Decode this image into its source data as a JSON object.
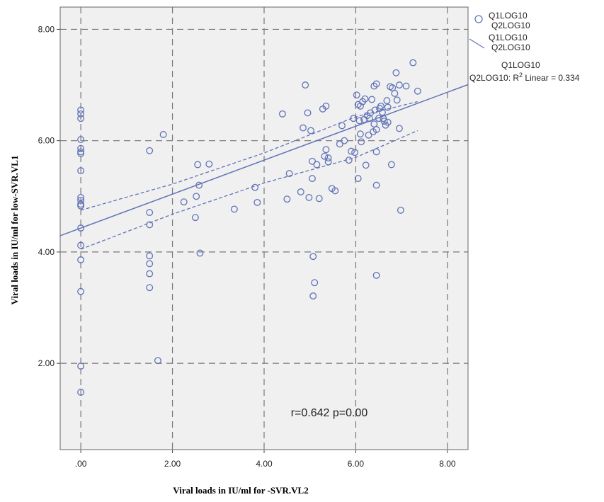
{
  "chart_data": {
    "type": "scatter",
    "title": "",
    "xlabel": "Viral loads in IU/ml for -SVR.VL2",
    "ylabel": "Viral loads in IU/ml for low-SVR.VL1",
    "xlim": [
      -0.45,
      8.45
    ],
    "ylim": [
      0.45,
      8.4
    ],
    "xticks": [
      0,
      2,
      4,
      6,
      8
    ],
    "xtick_labels": [
      ".00",
      "2.00",
      "4.00",
      "6.00",
      "8.00"
    ],
    "yticks": [
      2,
      4,
      6,
      8
    ],
    "ytick_labels": [
      "2.00",
      "4.00",
      "6.00",
      "8.00"
    ],
    "grid": true,
    "colors": {
      "series": "#6173b8",
      "plot_bg": "#f0f0f0",
      "grid": "#777777"
    },
    "legend": {
      "position": "top-right",
      "marker_line1": "Q1LOG10",
      "marker_line2": "Q2LOG10",
      "fit_line1": "Q1LOG10",
      "fit_line2": "Q2LOG10",
      "r2_line1": "Q1LOG10",
      "r2_prefix": "Q2LOG10: R",
      "r2_sup": "2",
      "r2_suffix": " Linear = 0.334"
    },
    "annotation": "r=0.642 p=0.00",
    "fit": {
      "slope": 0.305,
      "intercept": 4.43
    },
    "ci": {
      "x": [
        0,
        2,
        4,
        6,
        7.35
      ],
      "upper": [
        4.75,
        5.22,
        5.78,
        6.43,
        6.7
      ],
      "lower": [
        4.05,
        4.68,
        5.24,
        5.7,
        6.18
      ]
    },
    "series": [
      {
        "name": "Q1LOG10 Q2LOG10",
        "points": [
          [
            0,
            6.55
          ],
          [
            0,
            6.48
          ],
          [
            0,
            6.4
          ],
          [
            0,
            6.02
          ],
          [
            0,
            5.86
          ],
          [
            0,
            5.8
          ],
          [
            0,
            5.77
          ],
          [
            0,
            5.46
          ],
          [
            0,
            4.98
          ],
          [
            0,
            4.93
          ],
          [
            0,
            4.86
          ],
          [
            0,
            4.83
          ],
          [
            0,
            4.43
          ],
          [
            0,
            4.12
          ],
          [
            0,
            3.86
          ],
          [
            0,
            3.29
          ],
          [
            0,
            1.95
          ],
          [
            0,
            1.48
          ],
          [
            1.5,
            5.82
          ],
          [
            1.5,
            4.71
          ],
          [
            1.5,
            4.49
          ],
          [
            1.5,
            3.93
          ],
          [
            1.5,
            3.79
          ],
          [
            1.5,
            3.61
          ],
          [
            1.5,
            3.36
          ],
          [
            1.8,
            6.11
          ],
          [
            1.68,
            2.05
          ],
          [
            2.25,
            4.9
          ],
          [
            2.5,
            4.62
          ],
          [
            2.52,
            5.0
          ],
          [
            2.55,
            5.57
          ],
          [
            2.58,
            5.2
          ],
          [
            2.6,
            3.98
          ],
          [
            2.8,
            5.58
          ],
          [
            3.35,
            4.77
          ],
          [
            3.8,
            5.16
          ],
          [
            3.85,
            4.89
          ],
          [
            4.4,
            6.48
          ],
          [
            4.5,
            4.95
          ],
          [
            4.55,
            5.41
          ],
          [
            4.8,
            5.08
          ],
          [
            4.85,
            6.23
          ],
          [
            4.9,
            7.0
          ],
          [
            4.95,
            6.5
          ],
          [
            4.98,
            4.98
          ],
          [
            5.02,
            6.18
          ],
          [
            5.05,
            5.32
          ],
          [
            5.05,
            5.63
          ],
          [
            5.07,
            3.92
          ],
          [
            5.07,
            3.21
          ],
          [
            5.1,
            3.45
          ],
          [
            5.15,
            5.57
          ],
          [
            5.2,
            4.96
          ],
          [
            5.28,
            6.57
          ],
          [
            5.35,
            6.62
          ],
          [
            5.32,
            5.72
          ],
          [
            5.35,
            5.84
          ],
          [
            5.4,
            5.62
          ],
          [
            5.4,
            5.69
          ],
          [
            5.48,
            5.14
          ],
          [
            5.55,
            5.1
          ],
          [
            5.65,
            5.94
          ],
          [
            5.7,
            6.27
          ],
          [
            5.75,
            6.0
          ],
          [
            5.85,
            5.65
          ],
          [
            5.9,
            5.81
          ],
          [
            5.95,
            6.4
          ],
          [
            5.98,
            5.79
          ],
          [
            6.02,
            6.82
          ],
          [
            6.05,
            6.65
          ],
          [
            6.05,
            5.32
          ],
          [
            6.08,
            6.36
          ],
          [
            6.1,
            6.62
          ],
          [
            6.1,
            6.12
          ],
          [
            6.12,
            5.98
          ],
          [
            6.15,
            6.7
          ],
          [
            6.18,
            6.38
          ],
          [
            6.2,
            6.75
          ],
          [
            6.22,
            5.56
          ],
          [
            6.25,
            6.45
          ],
          [
            6.28,
            6.1
          ],
          [
            6.3,
            6.4
          ],
          [
            6.32,
            6.5
          ],
          [
            6.35,
            6.74
          ],
          [
            6.38,
            6.16
          ],
          [
            6.4,
            6.98
          ],
          [
            6.4,
            6.3
          ],
          [
            6.42,
            6.55
          ],
          [
            6.45,
            7.02
          ],
          [
            6.45,
            6.2
          ],
          [
            6.45,
            5.2
          ],
          [
            6.45,
            5.8
          ],
          [
            6.45,
            3.58
          ],
          [
            6.5,
            6.4
          ],
          [
            6.52,
            6.58
          ],
          [
            6.55,
            6.62
          ],
          [
            6.58,
            6.51
          ],
          [
            6.6,
            6.4
          ],
          [
            6.62,
            6.35
          ],
          [
            6.65,
            6.28
          ],
          [
            6.68,
            6.72
          ],
          [
            6.7,
            6.6
          ],
          [
            6.7,
            6.33
          ],
          [
            6.75,
            6.97
          ],
          [
            6.78,
            5.57
          ],
          [
            6.8,
            6.95
          ],
          [
            6.85,
            6.85
          ],
          [
            6.88,
            7.22
          ],
          [
            6.9,
            6.73
          ],
          [
            6.95,
            6.22
          ],
          [
            6.95,
            7.0
          ],
          [
            6.98,
            4.75
          ],
          [
            7.1,
            6.98
          ],
          [
            7.25,
            7.4
          ],
          [
            7.35,
            6.89
          ]
        ]
      }
    ]
  }
}
